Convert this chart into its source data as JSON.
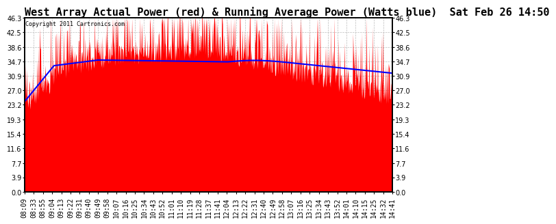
{
  "title": "West Array Actual Power (red) & Running Average Power (Watts blue)  Sat Feb 26 14:50",
  "copyright": "Copyright 2011 Cartronics.com",
  "bg_color": "#ffffff",
  "plot_bg_color": "#ffffff",
  "grid_color": "#bbbbbb",
  "red_color": "#ff0000",
  "blue_color": "#0000ff",
  "title_fontsize": 11,
  "tick_fontsize": 7,
  "yticks": [
    0.0,
    3.9,
    7.7,
    11.6,
    15.4,
    19.3,
    23.2,
    27.0,
    30.9,
    34.7,
    38.6,
    42.5,
    46.3
  ],
  "ymax": 46.3,
  "ymin": 0.0,
  "xtick_labels": [
    "08:09",
    "08:33",
    "08:55",
    "09:04",
    "09:13",
    "09:22",
    "09:31",
    "09:40",
    "09:49",
    "09:58",
    "10:07",
    "10:16",
    "10:25",
    "10:34",
    "10:43",
    "10:52",
    "11:01",
    "11:10",
    "11:19",
    "11:28",
    "11:37",
    "11:41",
    "12:04",
    "12:13",
    "12:22",
    "12:31",
    "12:40",
    "12:49",
    "12:58",
    "13:07",
    "13:16",
    "13:25",
    "13:34",
    "13:43",
    "13:52",
    "14:01",
    "14:10",
    "14:15",
    "14:25",
    "14:32",
    "14:41"
  ]
}
